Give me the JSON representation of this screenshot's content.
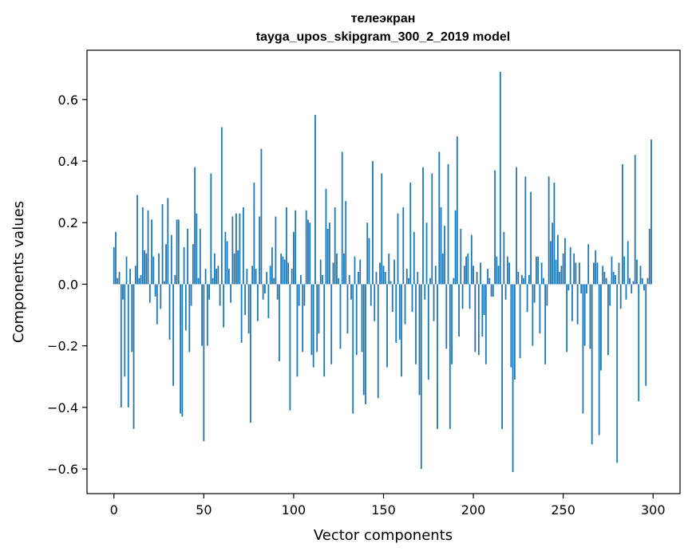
{
  "chart_data": {
    "type": "bar",
    "title": "телеэкран",
    "subtitle": "tayga_upos_skipgram_300_2_2019 model",
    "xlabel": "Vector components",
    "ylabel": "Components values",
    "xlim": [
      -15,
      315
    ],
    "ylim": [
      -0.68,
      0.76
    ],
    "xticks": [
      0,
      50,
      100,
      150,
      200,
      250,
      300
    ],
    "xtick_labels": [
      "0",
      "50",
      "100",
      "150",
      "200",
      "250",
      "300"
    ],
    "yticks": [
      -0.6,
      -0.4,
      -0.2,
      0.0,
      0.2,
      0.4,
      0.6
    ],
    "ytick_labels": [
      "−0.6",
      "−0.4",
      "−0.2",
      "0.0",
      "0.2",
      "0.4",
      "0.6"
    ],
    "grid": false,
    "bar_color": "#1f77b4",
    "series": [
      {
        "values": [
          0.12,
          0.17,
          0.02,
          0.04,
          -0.4,
          -0.05,
          -0.3,
          0.09,
          -0.4,
          0.05,
          -0.22,
          -0.47,
          0.06,
          0.29,
          0.02,
          0.03,
          0.25,
          0.11,
          0.1,
          0.24,
          -0.06,
          0.21,
          0.09,
          -0.04,
          -0.13,
          0.1,
          -0.08,
          0.26,
          0.01,
          0.13,
          0.28,
          -0.18,
          0.16,
          -0.33,
          0.03,
          0.21,
          0.21,
          -0.42,
          -0.43,
          0.12,
          -0.15,
          0.18,
          -0.22,
          -0.07,
          0.13,
          0.38,
          0.23,
          0.02,
          0.18,
          -0.2,
          -0.51,
          0.05,
          -0.2,
          -0.05,
          0.36,
          0.02,
          0.1,
          0.05,
          0.06,
          -0.07,
          0.51,
          -0.14,
          0.17,
          0.14,
          0.05,
          -0.06,
          0.22,
          0.1,
          0.23,
          0.11,
          0.23,
          -0.19,
          0.25,
          -0.1,
          0.05,
          -0.16,
          -0.45,
          0.06,
          0.33,
          0.05,
          -0.12,
          0.22,
          0.44,
          -0.05,
          -0.03,
          0.04,
          -0.11,
          0.06,
          0.12,
          0.02,
          0.22,
          -0.05,
          -0.25,
          0.1,
          0.09,
          0.08,
          0.25,
          0.07,
          -0.41,
          0.05,
          0.17,
          0.24,
          -0.3,
          -0.07,
          0.03,
          -0.22,
          -0.07,
          0.24,
          0.21,
          0.2,
          -0.23,
          -0.27,
          0.55,
          -0.22,
          -0.16,
          0.08,
          0.03,
          -0.3,
          0.31,
          0.18,
          0.2,
          -0.26,
          0.07,
          0.25,
          0.1,
          0.02,
          -0.21,
          0.43,
          0.1,
          0.27,
          -0.16,
          0.03,
          -0.05,
          -0.42,
          0.09,
          -0.23,
          0.04,
          0.08,
          -0.22,
          -0.36,
          -0.39,
          0.2,
          0.15,
          -0.07,
          0.4,
          -0.12,
          0.04,
          -0.37,
          0.07,
          0.36,
          0.06,
          0.04,
          -0.27,
          0.1,
          0.01,
          -0.09,
          0.08,
          -0.19,
          0.23,
          -0.18,
          -0.3,
          0.25,
          -0.13,
          0.05,
          0.02,
          0.33,
          -0.09,
          0.17,
          -0.26,
          0.04,
          -0.36,
          -0.6,
          0.38,
          -0.05,
          0.2,
          -0.31,
          0.02,
          0.36,
          -0.12,
          0.06,
          -0.47,
          0.43,
          0.25,
          0.1,
          0.19,
          -0.21,
          0.39,
          -0.47,
          -0.26,
          0.02,
          0.24,
          0.48,
          -0.17,
          0.18,
          -0.08,
          0.06,
          0.09,
          0.1,
          -0.08,
          0.16,
          0.06,
          -0.22,
          0.04,
          -0.23,
          0.07,
          -0.17,
          -0.1,
          -0.26,
          0.05,
          0.02,
          -0.04,
          -0.04,
          0.37,
          0.09,
          0.06,
          0.69,
          -0.47,
          0.17,
          -0.05,
          0.09,
          0.07,
          -0.27,
          -0.61,
          -0.31,
          0.38,
          0.04,
          -0.24,
          0.03,
          0.02,
          0.35,
          -0.09,
          0.03,
          0.3,
          -0.2,
          -0.06,
          0.09,
          0.09,
          -0.16,
          0.07,
          0.02,
          -0.26,
          -0.07,
          0.35,
          0.14,
          0.2,
          0.33,
          0.08,
          0.16,
          0.04,
          0.06,
          0.1,
          0.15,
          -0.22,
          -0.02,
          0.12,
          -0.12,
          0.1,
          0.07,
          -0.13,
          0.07,
          -0.03,
          -0.42,
          -0.2,
          -0.03,
          0.13,
          -0.21,
          -0.52,
          0.07,
          0.11,
          0.07,
          -0.49,
          -0.28,
          0.06,
          0.04,
          0.02,
          -0.23,
          -0.07,
          0.09,
          0.04,
          0.03,
          -0.58,
          0.07,
          -0.08,
          0.39,
          0.09,
          -0.05,
          0.14,
          0.02,
          -0.03,
          0.01,
          0.42,
          0.08,
          -0.38,
          0.06,
          0.02,
          -0.02,
          -0.33,
          0.02,
          0.18,
          0.47
        ]
      }
    ]
  }
}
